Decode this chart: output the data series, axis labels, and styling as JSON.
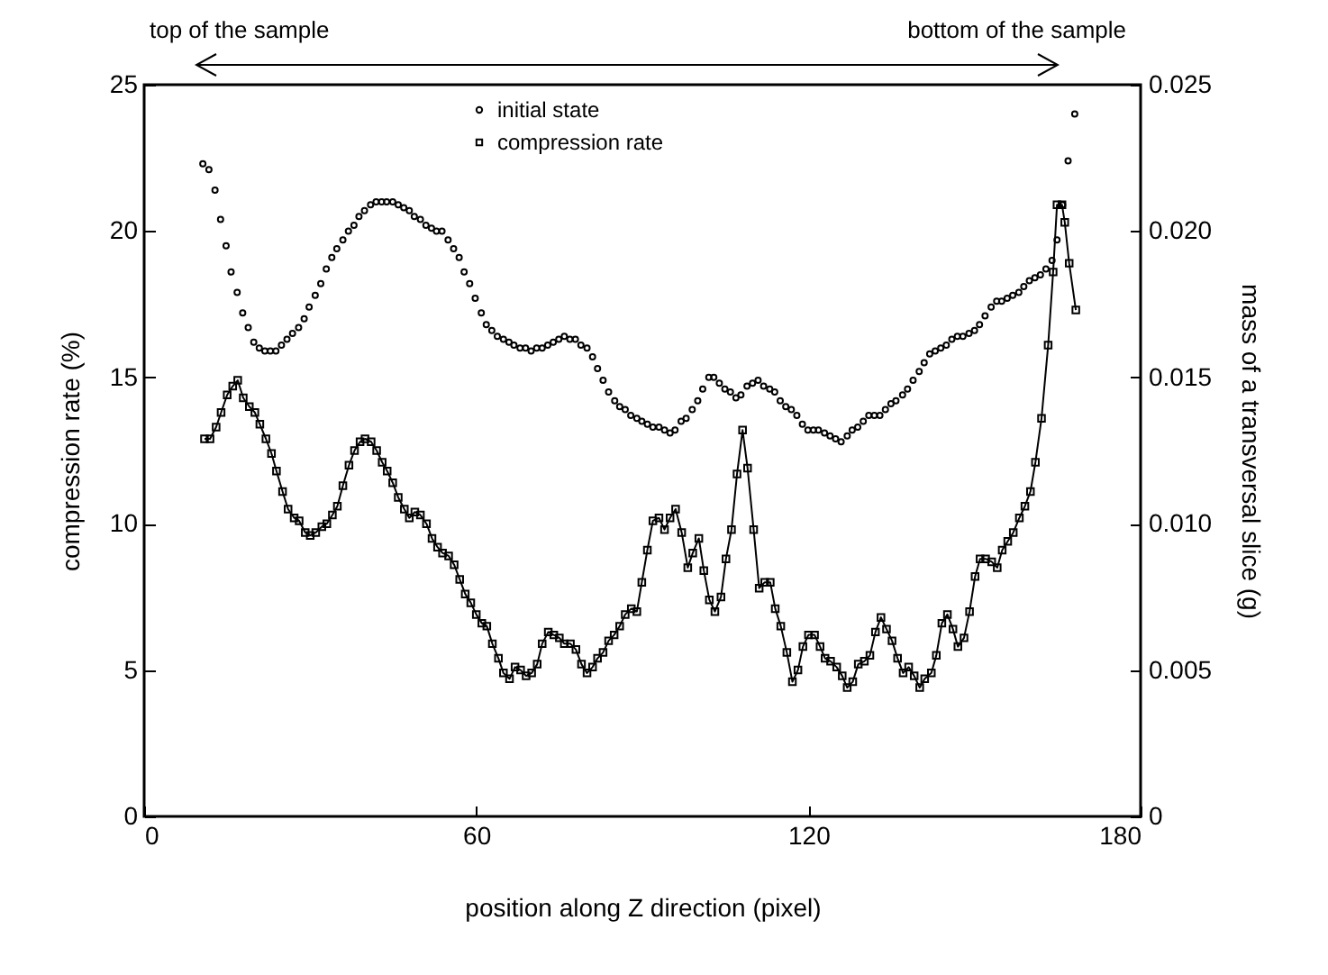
{
  "chart_data": {
    "type": "line",
    "xlabel": "position along Z direction (pixel)",
    "ylabel": "compression rate (%)",
    "y2label": "mass of a transversal slice (g)",
    "xlim": [
      0,
      180
    ],
    "xticks": [
      0,
      60,
      120,
      180
    ],
    "ylim": [
      0,
      25
    ],
    "yticks": [
      0,
      5,
      10,
      15,
      20,
      25
    ],
    "y2lim": [
      0,
      0.025
    ],
    "y2ticks": [
      0,
      {
        "value": 0.005,
        "label": "0.005"
      },
      {
        "value": 0.01,
        "label": "0.010"
      },
      {
        "value": 0.015,
        "label": "0.015"
      },
      {
        "value": 0.02,
        "label": "0.020"
      },
      {
        "value": 0.025,
        "label": "0.025"
      }
    ],
    "grid": false,
    "legend": "top",
    "annotations": [
      "top of the sample",
      "bottom of the sample"
    ],
    "series": [
      {
        "name": "initial state",
        "type": "scatter",
        "marker": "circle",
        "axis": "y2",
        "color": "#000000",
        "x": [
          10.6,
          11.7,
          12.8,
          13.8,
          14.8,
          15.7,
          16.8,
          17.8,
          18.8,
          19.8,
          20.8,
          21.8,
          22.8,
          23.8,
          24.8,
          25.8,
          26.8,
          27.9,
          28.9,
          29.8,
          30.9,
          31.9,
          32.9,
          33.9,
          34.8,
          35.9,
          36.9,
          37.9,
          38.8,
          39.8,
          40.9,
          41.9,
          42.9,
          43.8,
          44.9,
          45.9,
          46.9,
          47.9,
          48.8,
          49.9,
          50.9,
          51.9,
          52.8,
          53.8,
          54.9,
          55.9,
          56.9,
          57.8,
          58.8,
          59.8,
          60.9,
          61.8,
          62.8,
          63.8,
          64.9,
          65.9,
          66.8,
          67.9,
          68.9,
          69.9,
          70.9,
          71.9,
          72.9,
          73.9,
          74.9,
          75.9,
          76.9,
          77.9,
          78.9,
          80,
          81,
          81.9,
          82.9,
          83.9,
          85,
          85.9,
          86.9,
          87.9,
          89,
          89.9,
          90.9,
          91.9,
          93,
          94,
          95,
          95.9,
          97,
          97.9,
          99,
          100,
          100.9,
          102,
          102.9,
          103.9,
          104.9,
          105.9,
          106.9,
          107.8,
          108.9,
          109.9,
          110.9,
          111.9,
          113,
          113.9,
          114.9,
          115.9,
          116.9,
          117.9,
          118.9,
          119.9,
          120.9,
          121.8,
          122.9,
          123.9,
          124.9,
          125.9,
          127,
          127.9,
          128.9,
          129.9,
          130.9,
          131.9,
          132.9,
          133.9,
          134.9,
          135.8,
          137,
          137.9,
          138.9,
          140,
          140.9,
          141.9,
          142.9,
          143.9,
          144.9,
          145.9,
          146.9,
          147.9,
          149,
          150,
          150.9,
          151.9,
          153,
          154,
          154.9,
          155.9,
          156.9,
          158,
          158.9,
          159.9,
          160.9,
          161.9,
          162.9,
          164,
          164.9,
          165.9,
          166.9,
          168.1
        ],
        "values": [
          0.0223,
          0.0221,
          0.0214,
          0.0204,
          0.0195,
          0.0186,
          0.0179,
          0.0172,
          0.0167,
          0.0162,
          0.016,
          0.0159,
          0.0159,
          0.0159,
          0.0161,
          0.0163,
          0.0165,
          0.0167,
          0.017,
          0.0174,
          0.0178,
          0.0182,
          0.0187,
          0.0191,
          0.0194,
          0.0197,
          0.02,
          0.0202,
          0.0205,
          0.0207,
          0.0209,
          0.021,
          0.021,
          0.021,
          0.021,
          0.0209,
          0.0208,
          0.0207,
          0.0205,
          0.0204,
          0.0202,
          0.0201,
          0.02,
          0.02,
          0.0197,
          0.0194,
          0.0191,
          0.0186,
          0.0182,
          0.0177,
          0.0172,
          0.0168,
          0.0166,
          0.0164,
          0.0163,
          0.0162,
          0.0161,
          0.016,
          0.016,
          0.0159,
          0.016,
          0.016,
          0.0161,
          0.0162,
          0.0163,
          0.0164,
          0.0163,
          0.0163,
          0.0161,
          0.016,
          0.0157,
          0.0153,
          0.0149,
          0.0145,
          0.0142,
          0.014,
          0.0139,
          0.0137,
          0.0136,
          0.0135,
          0.0134,
          0.0133,
          0.0133,
          0.0132,
          0.0131,
          0.0132,
          0.0135,
          0.0136,
          0.0139,
          0.0142,
          0.0146,
          0.015,
          0.015,
          0.0148,
          0.0146,
          0.0145,
          0.0143,
          0.0144,
          0.0147,
          0.0148,
          0.0149,
          0.0147,
          0.0146,
          0.0145,
          0.0142,
          0.014,
          0.0139,
          0.0137,
          0.0134,
          0.0132,
          0.0132,
          0.0132,
          0.0131,
          0.013,
          0.0129,
          0.0128,
          0.013,
          0.0132,
          0.0133,
          0.0135,
          0.0137,
          0.0137,
          0.0137,
          0.0139,
          0.0141,
          0.0142,
          0.0144,
          0.0146,
          0.0149,
          0.0152,
          0.0155,
          0.0158,
          0.0159,
          0.016,
          0.0161,
          0.0163,
          0.0164,
          0.0164,
          0.0165,
          0.0166,
          0.0168,
          0.0171,
          0.0174,
          0.0176,
          0.0176,
          0.0177,
          0.0178,
          0.0179,
          0.0181,
          0.0183,
          0.0184,
          0.0185,
          0.0187,
          0.019,
          0.0197,
          0.0209,
          0.0224,
          0.024
        ]
      },
      {
        "name": "compression rate",
        "marker": "square",
        "color": "#000000",
        "x": [
          10.9,
          11.9,
          13,
          13.9,
          15,
          16,
          16.9,
          17.9,
          19,
          20,
          20.9,
          22,
          23,
          23.9,
          25,
          26,
          27.1,
          28,
          29.1,
          30,
          31,
          32.1,
          33,
          34,
          34.9,
          35.9,
          37,
          38,
          39,
          39.9,
          41,
          42,
          43,
          43.9,
          44.9,
          45.9,
          47,
          47.9,
          48.9,
          49.9,
          51,
          52,
          53,
          53.9,
          55,
          56,
          57,
          58,
          59,
          60,
          61,
          61.9,
          62.9,
          64,
          64.9,
          66,
          67,
          68,
          69,
          70,
          71,
          71.9,
          73,
          74,
          75,
          75.9,
          77,
          78,
          79,
          80,
          81,
          81.9,
          82.9,
          83.9,
          84.9,
          85.9,
          86.9,
          88,
          89,
          89.9,
          90.9,
          91.9,
          93,
          94,
          95,
          96,
          97.1,
          98.2,
          99.1,
          100.2,
          101.1,
          102.1,
          103.1,
          104.2,
          105.1,
          106.1,
          107.1,
          108.1,
          109,
          110.1,
          111.1,
          112.1,
          113.1,
          114,
          115,
          116.1,
          117.1,
          118.1,
          119,
          120,
          121.1,
          122.1,
          123,
          124,
          125.1,
          126.1,
          127,
          128,
          129,
          130.1,
          131.1,
          132.1,
          133.1,
          134.1,
          135.1,
          136.1,
          137.1,
          138.1,
          139.1,
          140.1,
          141,
          142.2,
          143.1,
          144.1,
          145.1,
          146.1,
          147,
          148.1,
          149.1,
          150.1,
          151,
          152,
          153.1,
          154.1,
          155,
          156,
          157,
          158.1,
          159.1,
          160.1,
          161,
          162.1,
          163.3,
          164.2,
          164.9,
          165.8,
          166.3,
          167.1,
          168.3
        ],
        "values": [
          12.9,
          12.9,
          13.3,
          13.8,
          14.4,
          14.7,
          14.9,
          14.3,
          14,
          13.8,
          13.4,
          12.9,
          12.4,
          11.8,
          11.1,
          10.5,
          10.2,
          10.1,
          9.7,
          9.6,
          9.7,
          9.9,
          10,
          10.3,
          10.6,
          11.3,
          12,
          12.5,
          12.8,
          12.9,
          12.8,
          12.5,
          12.1,
          11.8,
          11.4,
          10.9,
          10.5,
          10.2,
          10.4,
          10.3,
          10,
          9.5,
          9.2,
          9,
          8.9,
          8.6,
          8.1,
          7.6,
          7.3,
          6.9,
          6.6,
          6.5,
          5.9,
          5.4,
          4.9,
          4.7,
          5.1,
          5,
          4.8,
          4.9,
          5.2,
          5.9,
          6.3,
          6.2,
          6.1,
          5.9,
          5.9,
          5.7,
          5.2,
          4.9,
          5.1,
          5.4,
          5.6,
          6,
          6.2,
          6.5,
          6.9,
          7.1,
          7,
          8,
          9.1,
          10.1,
          10.2,
          9.8,
          10.2,
          10.5,
          9.7,
          8.5,
          9,
          9.5,
          8.4,
          7.4,
          7,
          7.5,
          8.8,
          9.8,
          11.7,
          13.2,
          11.9,
          9.8,
          7.8,
          8,
          8,
          7.1,
          6.5,
          5.6,
          4.6,
          5,
          5.8,
          6.2,
          6.2,
          5.8,
          5.4,
          5.3,
          5.1,
          4.8,
          4.4,
          4.6,
          5.2,
          5.3,
          5.5,
          6.3,
          6.8,
          6.4,
          6,
          5.4,
          4.9,
          5.1,
          4.8,
          4.4,
          4.7,
          4.9,
          5.5,
          6.6,
          6.9,
          6.4,
          5.8,
          6.1,
          7,
          8.2,
          8.8,
          8.8,
          8.7,
          8.5,
          9.1,
          9.4,
          9.7,
          10.2,
          10.6,
          11.1,
          12.1,
          13.6,
          16.1,
          18.6,
          20.9,
          20.9,
          20.3,
          18.9,
          17.3
        ]
      }
    ]
  }
}
